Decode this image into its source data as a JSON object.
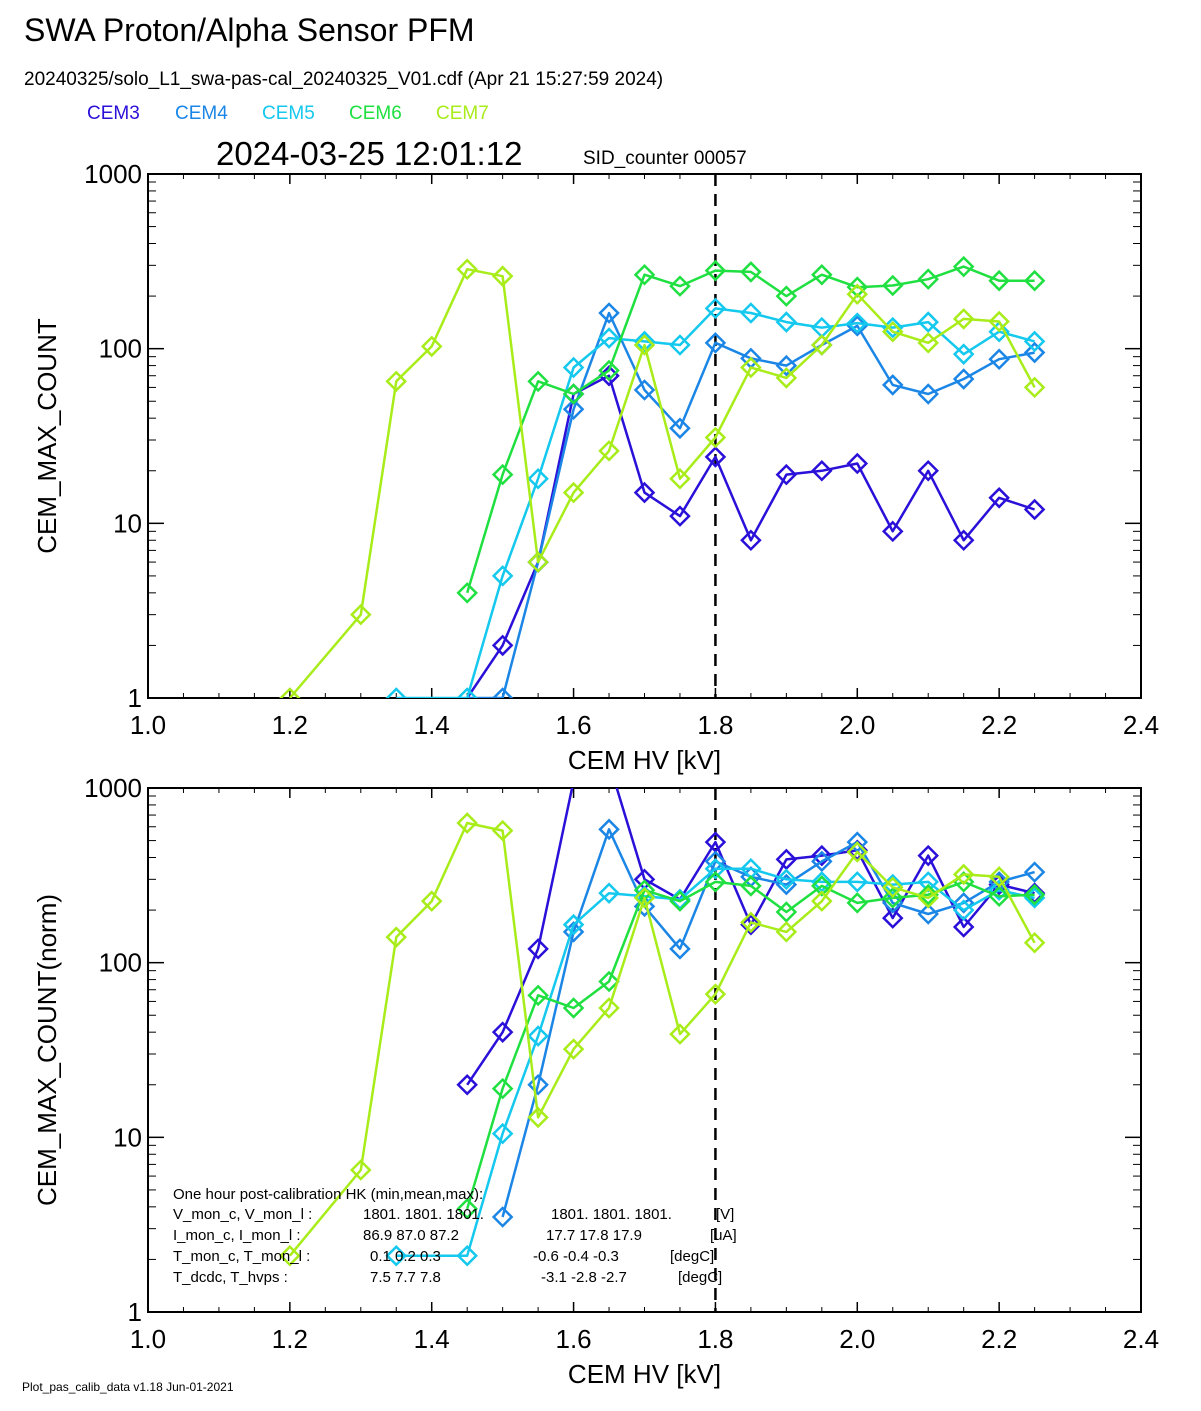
{
  "header": {
    "title": "SWA Proton/Alpha Sensor PFM",
    "file_line": "20240325/solo_L1_swa-pas-cal_20240325_V01.cdf  (Apr 21 15:27:59 2024)",
    "timestamp": "2024-03-25 12:01:12",
    "sid_counter": "SID_counter 00057"
  },
  "footer": {
    "version": "Plot_pas_calib_data v1.18 Jun-01-2021"
  },
  "colors": {
    "CEM3": "#2a10d8",
    "CEM4": "#1b86e6",
    "CEM5": "#14c8ee",
    "CEM6": "#1fe040",
    "CEM7": "#a8ec1a"
  },
  "hk_box": {
    "title": "One hour post-calibration HK (min,mean,max):",
    "rows": [
      {
        "label": "V_mon_c, V_mon_l :",
        "c": "1801.  1801.  1801.",
        "l": "1801.  1801.  1801.",
        "unit": "[V]"
      },
      {
        "label": "I_mon_c,  I_mon_l :",
        "c": "86.9   87.0   87.2",
        "l": "17.7   17.8   17.9",
        "unit": "[uA]"
      },
      {
        "label": "T_mon_c, T_mon_l :",
        "c": "0.1     0.2     0.3",
        "l": "-0.6   -0.4   -0.3",
        "unit": "[degC]"
      },
      {
        "label": "T_dcdc,    T_hvps :",
        "c": "7.5     7.7     7.8",
        "l": "-3.1   -2.8   -2.7",
        "unit": "[degC]"
      }
    ]
  },
  "chart_data": [
    {
      "type": "line",
      "ylabel": "CEM_MAX_COUNT",
      "xlabel": "CEM HV [kV]",
      "xlim": [
        1.0,
        2.4
      ],
      "ylim": [
        1,
        1000
      ],
      "ylog": true,
      "xticks": [
        "1.0",
        "1.2",
        "1.4",
        "1.6",
        "1.8",
        "2.0",
        "2.2",
        "2.4"
      ],
      "yticks": [
        "1",
        "10",
        "100",
        "1000"
      ],
      "vline": 1.8,
      "series": [
        {
          "name": "CEM3",
          "color": "#2a10d8",
          "x": [
            1.45,
            1.5,
            1.55,
            1.6,
            1.65,
            1.7,
            1.75,
            1.8,
            1.85,
            1.9,
            1.95,
            2.0,
            2.05,
            2.1,
            2.15,
            2.2,
            2.25
          ],
          "y": [
            1,
            2,
            6,
            55,
            70,
            15,
            11,
            24,
            8,
            19,
            20,
            22,
            9,
            20,
            8,
            14,
            12
          ],
          "hidden_markers": [
            0
          ]
        },
        {
          "name": "CEM4",
          "color": "#1b86e6",
          "x": [
            1.45,
            1.5,
            1.55,
            1.6,
            1.65,
            1.7,
            1.75,
            1.8,
            1.85,
            1.9,
            1.95,
            2.0,
            2.05,
            2.1,
            2.15,
            2.2,
            2.25
          ],
          "y": [
            1,
            1,
            6,
            45,
            160,
            58,
            35,
            108,
            88,
            80,
            105,
            135,
            62,
            55,
            67,
            87,
            95
          ],
          "hidden_markers": [
            0
          ]
        },
        {
          "name": "CEM5",
          "color": "#14c8ee",
          "x": [
            1.35,
            1.4,
            1.45,
            1.5,
            1.55,
            1.6,
            1.65,
            1.7,
            1.75,
            1.8,
            1.85,
            1.9,
            1.95,
            2.0,
            2.05,
            2.1,
            2.15,
            2.2,
            2.25
          ],
          "y": [
            1,
            1,
            1,
            5,
            18,
            78,
            115,
            110,
            105,
            170,
            160,
            142,
            132,
            140,
            132,
            142,
            93,
            125,
            110
          ],
          "hidden_markers": [
            1
          ]
        },
        {
          "name": "CEM6",
          "color": "#1fe040",
          "x": [
            1.45,
            1.5,
            1.55,
            1.6,
            1.65,
            1.7,
            1.75,
            1.8,
            1.85,
            1.9,
            1.95,
            2.0,
            2.05,
            2.1,
            2.15,
            2.2,
            2.25
          ],
          "y": [
            4,
            19,
            65,
            55,
            75,
            265,
            228,
            280,
            275,
            200,
            265,
            225,
            230,
            250,
            295,
            245,
            245
          ],
          "hidden_markers": []
        },
        {
          "name": "CEM7",
          "color": "#a8ec1a",
          "x": [
            1.2,
            1.3,
            1.35,
            1.4,
            1.45,
            1.5,
            1.55,
            1.6,
            1.65,
            1.7,
            1.75,
            1.8,
            1.85,
            1.9,
            1.95,
            2.0,
            2.05,
            2.1,
            2.15,
            2.2,
            2.25
          ],
          "y": [
            1,
            3,
            65,
            103,
            285,
            260,
            6,
            15,
            26,
            105,
            18,
            31,
            78,
            68,
            105,
            205,
            125,
            108,
            148,
            143,
            60
          ],
          "hidden_markers": []
        }
      ]
    },
    {
      "type": "line",
      "ylabel": "CEM_MAX_COUNT(norm)",
      "xlabel": "CEM HV [kV]",
      "xlim": [
        1.0,
        2.4
      ],
      "ylim": [
        1,
        1000
      ],
      "ylog": true,
      "xticks": [
        "1.0",
        "1.2",
        "1.4",
        "1.6",
        "1.8",
        "2.0",
        "2.2",
        "2.4"
      ],
      "yticks": [
        "1",
        "10",
        "100",
        "1000"
      ],
      "vline": 1.8,
      "series": [
        {
          "name": "CEM3",
          "color": "#2a10d8",
          "x": [
            1.45,
            1.5,
            1.55,
            1.6,
            1.65,
            1.7,
            1.75,
            1.8,
            1.85,
            1.9,
            1.95,
            2.0,
            2.05,
            2.1,
            2.15,
            2.2,
            2.25
          ],
          "y": [
            20,
            40,
            120,
            1100,
            1400,
            300,
            230,
            490,
            165,
            390,
            410,
            440,
            180,
            410,
            160,
            280,
            250
          ],
          "hidden_markers": [
            3,
            4
          ]
        },
        {
          "name": "CEM4",
          "color": "#1b86e6",
          "x": [
            1.5,
            1.55,
            1.6,
            1.65,
            1.7,
            1.75,
            1.8,
            1.85,
            1.9,
            1.95,
            2.0,
            2.05,
            2.1,
            2.15,
            2.2,
            2.25
          ],
          "y": [
            3.5,
            20,
            150,
            580,
            210,
            120,
            380,
            310,
            280,
            380,
            490,
            220,
            190,
            220,
            290,
            330
          ],
          "hidden_markers": []
        },
        {
          "name": "CEM5",
          "color": "#14c8ee",
          "x": [
            1.35,
            1.4,
            1.45,
            1.5,
            1.55,
            1.6,
            1.65,
            1.7,
            1.75,
            1.8,
            1.85,
            1.9,
            1.95,
            2.0,
            2.05,
            2.1,
            2.15,
            2.2,
            2.25
          ],
          "y": [
            2.1,
            2.1,
            2.1,
            10.5,
            38,
            165,
            250,
            240,
            230,
            345,
            345,
            300,
            290,
            290,
            280,
            290,
            200,
            260,
            235
          ],
          "hidden_markers": [
            1
          ]
        },
        {
          "name": "CEM6",
          "color": "#1fe040",
          "x": [
            1.45,
            1.5,
            1.55,
            1.6,
            1.65,
            1.7,
            1.75,
            1.8,
            1.85,
            1.9,
            1.95,
            2.0,
            2.05,
            2.1,
            2.15,
            2.2,
            2.25
          ],
          "y": [
            3.9,
            19,
            65,
            55,
            78,
            260,
            225,
            290,
            275,
            195,
            275,
            220,
            235,
            245,
            290,
            240,
            245
          ],
          "hidden_markers": []
        },
        {
          "name": "CEM7",
          "color": "#a8ec1a",
          "x": [
            1.2,
            1.3,
            1.35,
            1.4,
            1.45,
            1.5,
            1.55,
            1.6,
            1.65,
            1.7,
            1.75,
            1.8,
            1.85,
            1.9,
            1.95,
            2.0,
            2.05,
            2.1,
            2.15,
            2.2,
            2.25
          ],
          "y": [
            2.1,
            6.5,
            140,
            225,
            630,
            570,
            13,
            32,
            55,
            235,
            39,
            66,
            170,
            150,
            225,
            430,
            270,
            235,
            320,
            310,
            130
          ],
          "hidden_markers": []
        }
      ]
    }
  ]
}
